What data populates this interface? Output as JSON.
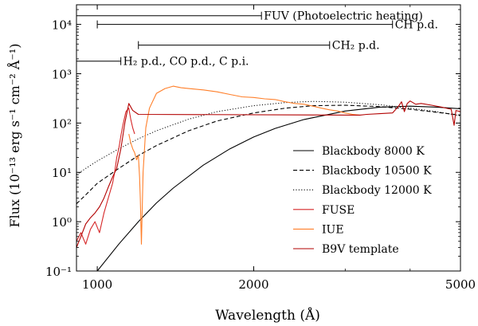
{
  "chart_data": {
    "type": "line",
    "xlabel": "Wavelength (Å)",
    "ylabel": "Flux (10⁻¹³ erg s⁻¹ cm⁻² Å⁻¹)",
    "x_scale": "log",
    "y_scale": "log",
    "xlim": [
      912,
      5000
    ],
    "ylim": [
      0.1,
      25000
    ],
    "x_ticks": [
      1000,
      2000,
      5000
    ],
    "x_tick_labels": [
      "1000",
      "2000",
      "5000"
    ],
    "y_ticks": [
      0.1,
      1,
      10,
      100,
      1000,
      10000
    ],
    "y_tick_labels": [
      "10⁻¹",
      "10⁰",
      "10¹",
      "10²",
      "10³",
      "10⁴"
    ],
    "legend_position": "lower-right",
    "annotations": [
      {
        "label": "FUV (Photoelectric heating)",
        "x_start": 912,
        "x_end": 2070,
        "y": 15000
      },
      {
        "label": "CH p.d.",
        "x_start": 1000,
        "x_end": 3700,
        "y": 10000
      },
      {
        "label": "CH₂ p.d.",
        "x_start": 1200,
        "x_end": 2800,
        "y": 3800
      },
      {
        "label": "H₂ p.d., CO p.d., C p.i.",
        "x_start": 912,
        "x_end": 1110,
        "y": 1800
      }
    ],
    "series": [
      {
        "name": "Blackbody 8000 K",
        "color": "#000000",
        "dash": "solid",
        "x": [
          950,
          1000,
          1100,
          1200,
          1300,
          1400,
          1600,
          1800,
          2000,
          2200,
          2500,
          3000,
          3500,
          4000,
          4500,
          5000
        ],
        "y": [
          0.06,
          0.1,
          0.35,
          1.0,
          2.4,
          4.8,
          14,
          30,
          52,
          78,
          118,
          175,
          210,
          220,
          210,
          195
        ]
      },
      {
        "name": "Blackbody 10500 K",
        "color": "#000000",
        "dash": "dashed",
        "x": [
          912,
          950,
          1000,
          1100,
          1200,
          1300,
          1500,
          1700,
          2000,
          2300,
          2600,
          3000,
          3500,
          4000,
          4500,
          5000
        ],
        "y": [
          2.3,
          3.5,
          6,
          12,
          22,
          35,
          70,
          110,
          160,
          200,
          225,
          230,
          215,
          190,
          165,
          145
        ]
      },
      {
        "name": "Blackbody 12000 K",
        "color": "#000000",
        "dash": "dotted",
        "x": [
          912,
          950,
          1000,
          1100,
          1200,
          1300,
          1500,
          1700,
          2000,
          2300,
          2600,
          3000,
          3500,
          4000,
          4500,
          5000
        ],
        "y": [
          9,
          12,
          17,
          30,
          48,
          70,
          120,
          170,
          225,
          260,
          275,
          265,
          235,
          200,
          170,
          140
        ]
      },
      {
        "name": "FUSE",
        "color": "#d62728",
        "dash": "solid",
        "x": [
          912,
          930,
          950,
          970,
          990,
          1010,
          1030,
          1050,
          1070,
          1080,
          1090,
          1100,
          1110,
          1120,
          1135,
          1150,
          1160,
          1170,
          1180
        ],
        "y": [
          0.4,
          0.6,
          0.35,
          0.7,
          1.0,
          0.6,
          1.5,
          3.0,
          6.0,
          10,
          20,
          30,
          55,
          90,
          170,
          200,
          120,
          80,
          60
        ]
      },
      {
        "name": "IUE",
        "color": "#ff7f2a",
        "dash": "solid",
        "x": [
          1150,
          1160,
          1170,
          1180,
          1190,
          1200,
          1206,
          1210,
          1216,
          1225,
          1240,
          1260,
          1300,
          1350,
          1400,
          1450,
          1500,
          1600,
          1700,
          1800,
          1900,
          2000,
          2100,
          2200,
          2300,
          2400,
          2500,
          2600,
          2700,
          2800,
          2900,
          3000,
          3100,
          3200
        ],
        "y": [
          60,
          40,
          30,
          25,
          18,
          22,
          8,
          3,
          0.35,
          10,
          80,
          200,
          400,
          500,
          560,
          520,
          500,
          470,
          430,
          380,
          340,
          330,
          310,
          300,
          270,
          250,
          240,
          220,
          200,
          185,
          175,
          160,
          150,
          145
        ]
      },
      {
        "name": "B9V template",
        "color": "#b20000",
        "dash": "solid",
        "x": [
          912,
          930,
          950,
          970,
          990,
          1010,
          1030,
          1050,
          1070,
          1090,
          1110,
          1130,
          1150,
          1170,
          1200,
          3200,
          3300,
          3500,
          3700,
          3800,
          3850,
          3900,
          3950,
          4000,
          4100,
          4200,
          4400,
          4600,
          4800,
          4860,
          4900,
          5000
        ],
        "y": [
          0.3,
          0.5,
          0.9,
          1.2,
          1.5,
          2.0,
          3.0,
          5.0,
          8.0,
          12,
          30,
          100,
          250,
          180,
          150,
          145,
          150,
          155,
          160,
          220,
          270,
          170,
          250,
          280,
          240,
          250,
          230,
          210,
          190,
          90,
          180,
          170
        ]
      }
    ]
  }
}
